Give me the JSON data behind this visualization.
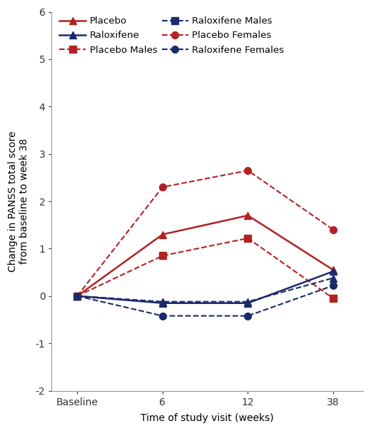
{
  "x_positions": [
    0,
    1,
    2,
    3
  ],
  "x_labels": [
    "Baseline",
    "6",
    "12",
    "38"
  ],
  "series_order": [
    "placebo",
    "placebo_males",
    "placebo_females",
    "raloxifene",
    "raloxifene_males",
    "raloxifene_females"
  ],
  "series": {
    "placebo": {
      "label": "Placebo",
      "values": [
        0,
        1.3,
        1.7,
        0.55
      ],
      "color": "#B22222",
      "linestyle": "solid",
      "marker": "^",
      "markersize": 7,
      "linewidth": 1.8
    },
    "placebo_males": {
      "label": "Placebo Males",
      "values": [
        0,
        0.85,
        1.22,
        -0.05
      ],
      "color": "#B22222",
      "linestyle": "dashed",
      "marker": "s",
      "markersize": 7,
      "linewidth": 1.5
    },
    "placebo_females": {
      "label": "Placebo Females",
      "values": [
        0,
        2.3,
        2.65,
        1.4
      ],
      "color": "#B22222",
      "linestyle": "dashed",
      "marker": "o",
      "markersize": 7,
      "linewidth": 1.5
    },
    "raloxifene": {
      "label": "Raloxifene",
      "values": [
        0,
        -0.15,
        -0.15,
        0.52
      ],
      "color": "#1B2A6B",
      "linestyle": "solid",
      "marker": "^",
      "markersize": 7,
      "linewidth": 1.8
    },
    "raloxifene_males": {
      "label": "Raloxifene Males",
      "values": [
        0,
        -0.12,
        -0.12,
        0.38
      ],
      "color": "#1B2A6B",
      "linestyle": "dashed",
      "marker": "^",
      "markersize": 7,
      "linewidth": 1.5
    },
    "raloxifene_females": {
      "label": "Raloxifene Females",
      "values": [
        0,
        -0.42,
        -0.42,
        0.22
      ],
      "color": "#1B2A6B",
      "linestyle": "dashed",
      "marker": "o",
      "markersize": 7,
      "linewidth": 1.5
    }
  },
  "legend_order": [
    "placebo",
    "raloxifene",
    "placebo_males",
    "raloxifene_males",
    "placebo_females",
    "raloxifene_females"
  ],
  "ylim": [
    -2,
    6
  ],
  "yticks": [
    -2,
    -1,
    0,
    1,
    2,
    3,
    4,
    5,
    6
  ],
  "ylabel": "Change in PANSS total score\nfrom baseline to week 38",
  "xlabel": "Time of study visit (weeks)",
  "background_color": "#ffffff",
  "font_size": 10
}
